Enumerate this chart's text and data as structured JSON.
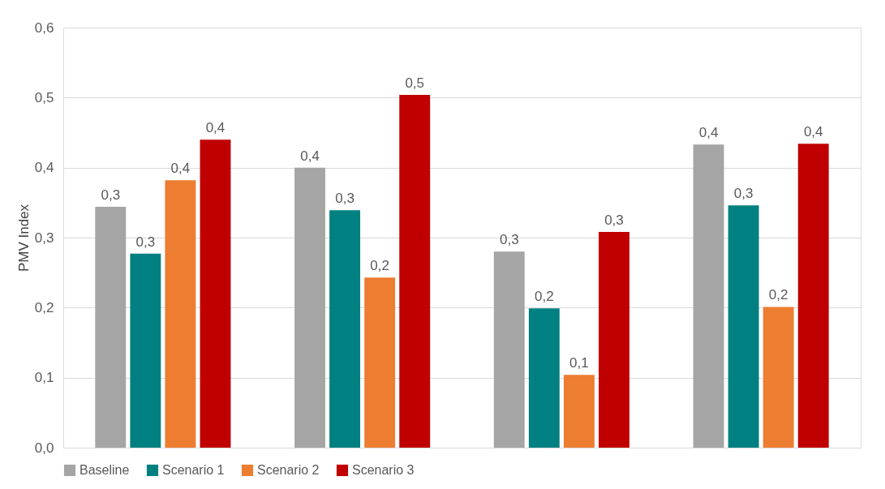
{
  "chart_data": {
    "type": "bar",
    "ylabel": "PMV Index",
    "categories": [
      null,
      null,
      null,
      null
    ],
    "series": [
      {
        "name": "Baseline",
        "color": "#a5a5a5",
        "values": [
          0.344,
          0.4,
          0.28,
          0.433
        ],
        "value_labels": [
          "0,3",
          "0,4",
          "0,3",
          "0,4"
        ]
      },
      {
        "name": "Scenario 1",
        "color": "#008080",
        "values": [
          0.277,
          0.339,
          0.199,
          0.346
        ],
        "value_labels": [
          "0,3",
          "0,3",
          "0,2",
          "0,3"
        ]
      },
      {
        "name": "Scenario 2",
        "color": "#ed7d31",
        "values": [
          0.382,
          0.243,
          0.104,
          0.201
        ],
        "value_labels": [
          "0,4",
          "0,2",
          "0,1",
          "0,2"
        ]
      },
      {
        "name": "Scenario 3",
        "color": "#c00000",
        "values": [
          0.44,
          0.504,
          0.308,
          0.434
        ],
        "value_labels": [
          "0,4",
          "0,5",
          "0,3",
          "0,4"
        ]
      }
    ],
    "ylim": [
      0,
      0.6
    ],
    "yticks": [
      {
        "value": 0,
        "label": "0,0"
      },
      {
        "value": 0.1,
        "label": "0,1"
      },
      {
        "value": 0.2,
        "label": "0,2"
      },
      {
        "value": 0.3,
        "label": "0,3"
      },
      {
        "value": 0.4,
        "label": "0,4"
      },
      {
        "value": 0.5,
        "label": "0,5"
      },
      {
        "value": 0.6,
        "label": "0,6"
      }
    ],
    "grid": "y",
    "legend": "bottom"
  }
}
